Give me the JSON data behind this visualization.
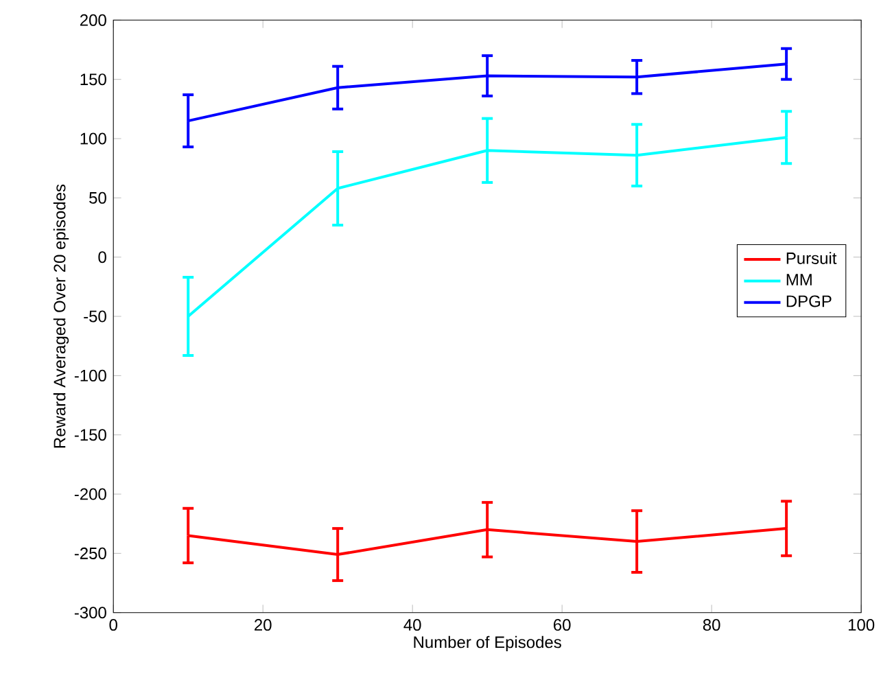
{
  "chart_data": {
    "type": "line",
    "xlabel": "Number of Episodes",
    "ylabel": "Reward Averaged Over 20 episodes",
    "x": [
      10,
      30,
      50,
      70,
      90
    ],
    "series": [
      {
        "name": "Pursuit",
        "color": "#ff0000",
        "values": [
          -235,
          -251,
          -230,
          -240,
          -229
        ],
        "errors": [
          23,
          22,
          23,
          26,
          23
        ]
      },
      {
        "name": "MM",
        "color": "#00ffff",
        "values": [
          -50,
          58,
          90,
          86,
          101
        ],
        "errors": [
          33,
          31,
          27,
          26,
          22
        ]
      },
      {
        "name": "DPGP",
        "color": "#0000ff",
        "values": [
          115,
          143,
          153,
          152,
          163
        ],
        "errors": [
          22,
          18,
          17,
          14,
          13
        ]
      }
    ],
    "xlim": [
      0,
      100
    ],
    "xticks": [
      0,
      20,
      40,
      60,
      80,
      100
    ],
    "ylim": [
      -300,
      200
    ],
    "yticks": [
      -300,
      -250,
      -200,
      -150,
      -100,
      -50,
      0,
      50,
      100,
      150,
      200
    ],
    "legend": "right"
  }
}
